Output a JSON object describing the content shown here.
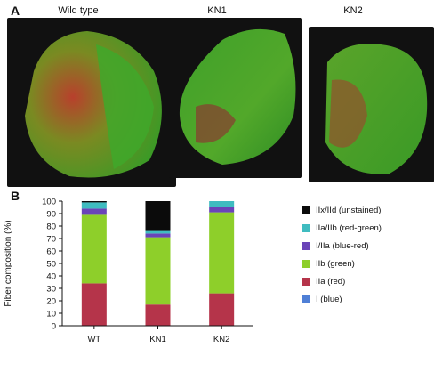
{
  "panel_a": {
    "letter": "A",
    "images": [
      {
        "title": "Wild type"
      },
      {
        "title": "KN1"
      },
      {
        "title": "KN2"
      }
    ]
  },
  "panel_b": {
    "letter": "B"
  },
  "chart_data": {
    "type": "bar",
    "stacked": true,
    "categories": [
      "WT",
      "KN1",
      "KN2"
    ],
    "ylabel": "Fiber composition (%)",
    "xlabel": "",
    "ylim": [
      0,
      100
    ],
    "yticks": [
      0,
      10,
      20,
      30,
      40,
      50,
      60,
      70,
      80,
      90,
      100
    ],
    "legend_position": "right",
    "series": [
      {
        "name": "I (blue)",
        "color": "#4f7fd6",
        "values": [
          0,
          0,
          0
        ]
      },
      {
        "name": "IIa (red)",
        "color": "#b5344a",
        "values": [
          34,
          17,
          26
        ]
      },
      {
        "name": "IIb (green)",
        "color": "#8ecf2a",
        "values": [
          55,
          54,
          65
        ]
      },
      {
        "name": "I/IIa (blue-red)",
        "color": "#6a44b8",
        "values": [
          5,
          3,
          4
        ]
      },
      {
        "name": "IIa/IIb (red-green)",
        "color": "#3fbcc0",
        "values": [
          5,
          2,
          5
        ]
      },
      {
        "name": "IIx/IId (unstained)",
        "color": "#0b0b0b",
        "values": [
          1,
          24,
          0
        ]
      }
    ]
  }
}
